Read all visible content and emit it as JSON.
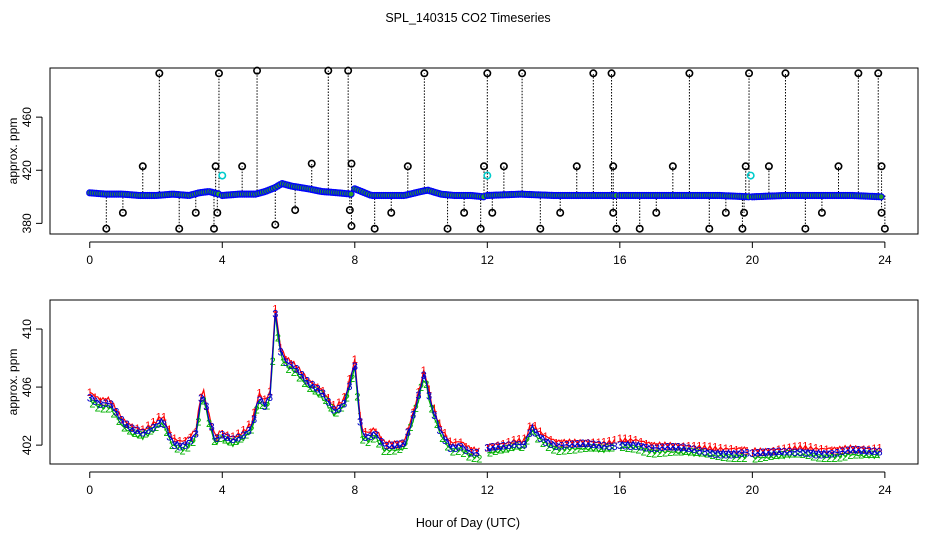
{
  "figure": {
    "title": "SPL_140315  CO2 Timeseries",
    "xlabel": "Hour of Day (UTC)"
  },
  "chart_data": [
    {
      "type": "scatter",
      "panel": "top",
      "title": "SPL_140315  CO2 Timeseries",
      "xlabel": "",
      "ylabel": "approx. ppm",
      "xlim": [
        -1.2,
        25
      ],
      "ylim": [
        372,
        497
      ],
      "xticks": [
        0,
        4,
        8,
        12,
        16,
        20,
        24
      ],
      "yticks": [
        380,
        420,
        460
      ],
      "colors": {
        "baseline": "#0000ff",
        "baseline_fill": "#2aa02a",
        "spike": "#000000",
        "flag": "#00cccc",
        "drop": "#000000"
      },
      "baseline_segments": [
        {
          "x": [
            0,
            0.5,
            1,
            1.5,
            2,
            2.5,
            3,
            3.3,
            3.6,
            3.9
          ],
          "y": [
            403,
            402,
            402,
            401,
            401,
            402,
            401,
            403,
            404,
            402
          ]
        },
        {
          "x": [
            4.0,
            4.5,
            5.0,
            5.3,
            5.6,
            5.8,
            6.1,
            6.6,
            7.0,
            7.5,
            7.9
          ],
          "y": [
            401,
            402,
            402,
            404,
            407,
            410,
            408,
            406,
            404,
            403,
            402
          ]
        },
        {
          "x": [
            8.0,
            8.2,
            8.5,
            9.0,
            9.5,
            10.0,
            10.2,
            10.6,
            11.0,
            11.5,
            11.9
          ],
          "y": [
            406,
            404,
            401,
            401,
            401,
            404,
            405,
            402,
            401,
            401,
            400
          ]
        },
        {
          "x": [
            12.0,
            13.0,
            14.0,
            15.0,
            15.9
          ],
          "y": [
            401,
            402,
            401,
            401,
            401
          ]
        },
        {
          "x": [
            16.0,
            17.0,
            18.0,
            19.0,
            19.9
          ],
          "y": [
            401,
            401,
            401,
            401,
            400
          ]
        },
        {
          "x": [
            20.0,
            21.0,
            22.0,
            23.0,
            23.9
          ],
          "y": [
            400,
            401,
            401,
            401,
            400
          ]
        }
      ],
      "spikes": [
        {
          "x": 2.1,
          "y": 493
        },
        {
          "x": 3.9,
          "y": 493
        },
        {
          "x": 5.05,
          "y": 495
        },
        {
          "x": 7.2,
          "y": 495
        },
        {
          "x": 7.8,
          "y": 495
        },
        {
          "x": 10.1,
          "y": 493
        },
        {
          "x": 12.0,
          "y": 493
        },
        {
          "x": 13.05,
          "y": 493
        },
        {
          "x": 15.2,
          "y": 493
        },
        {
          "x": 15.75,
          "y": 493
        },
        {
          "x": 18.1,
          "y": 493
        },
        {
          "x": 19.9,
          "y": 493
        },
        {
          "x": 21.0,
          "y": 493
        },
        {
          "x": 23.2,
          "y": 493
        },
        {
          "x": 23.8,
          "y": 493
        },
        {
          "x": 1.6,
          "y": 423
        },
        {
          "x": 3.8,
          "y": 423
        },
        {
          "x": 4.6,
          "y": 423
        },
        {
          "x": 6.7,
          "y": 425
        },
        {
          "x": 7.9,
          "y": 425
        },
        {
          "x": 9.6,
          "y": 423
        },
        {
          "x": 11.9,
          "y": 423
        },
        {
          "x": 12.5,
          "y": 423
        },
        {
          "x": 14.7,
          "y": 423
        },
        {
          "x": 15.8,
          "y": 423
        },
        {
          "x": 17.6,
          "y": 423
        },
        {
          "x": 19.8,
          "y": 423
        },
        {
          "x": 20.5,
          "y": 423
        },
        {
          "x": 22.6,
          "y": 423
        },
        {
          "x": 23.9,
          "y": 423
        }
      ],
      "drops": [
        {
          "x": 0.5,
          "y": 376
        },
        {
          "x": 1.0,
          "y": 388
        },
        {
          "x": 2.7,
          "y": 376
        },
        {
          "x": 3.2,
          "y": 388
        },
        {
          "x": 3.75,
          "y": 376
        },
        {
          "x": 3.85,
          "y": 388
        },
        {
          "x": 5.6,
          "y": 379
        },
        {
          "x": 6.2,
          "y": 390
        },
        {
          "x": 7.85,
          "y": 390
        },
        {
          "x": 7.9,
          "y": 378
        },
        {
          "x": 8.6,
          "y": 376
        },
        {
          "x": 9.1,
          "y": 388
        },
        {
          "x": 10.8,
          "y": 376
        },
        {
          "x": 11.3,
          "y": 388
        },
        {
          "x": 11.8,
          "y": 376
        },
        {
          "x": 12.15,
          "y": 388
        },
        {
          "x": 13.6,
          "y": 376
        },
        {
          "x": 14.2,
          "y": 388
        },
        {
          "x": 15.8,
          "y": 388
        },
        {
          "x": 15.9,
          "y": 376
        },
        {
          "x": 16.6,
          "y": 376
        },
        {
          "x": 17.1,
          "y": 388
        },
        {
          "x": 18.7,
          "y": 376
        },
        {
          "x": 19.2,
          "y": 388
        },
        {
          "x": 19.7,
          "y": 376
        },
        {
          "x": 19.75,
          "y": 388
        },
        {
          "x": 21.6,
          "y": 376
        },
        {
          "x": 22.1,
          "y": 388
        },
        {
          "x": 23.9,
          "y": 388
        },
        {
          "x": 24.0,
          "y": 376
        }
      ],
      "flags": [
        {
          "x": 4.0,
          "y": 416
        },
        {
          "x": 12.0,
          "y": 416
        },
        {
          "x": 19.95,
          "y": 416
        }
      ]
    },
    {
      "type": "line",
      "panel": "bottom",
      "title": "",
      "xlabel": "Hour of Day (UTC)",
      "ylabel": "approx. ppm",
      "xlim": [
        -1.2,
        25
      ],
      "ylim": [
        400.7,
        412
      ],
      "xticks": [
        0,
        4,
        8,
        12,
        16,
        20,
        24
      ],
      "yticks": [
        402,
        406,
        410
      ],
      "series": [
        {
          "name": "1",
          "color": "#ff0000",
          "dy": 0.25
        },
        {
          "name": "2",
          "color": "#00b000",
          "dy": -0.25
        },
        {
          "name": "3",
          "color": "#0000cd",
          "dy": 0
        }
      ],
      "segments": [
        {
          "x": [
            0,
            0.3,
            0.6,
            1.0,
            1.3,
            1.6,
            1.9,
            2.2,
            2.5,
            2.8,
            3.0,
            3.2,
            3.4,
            3.6,
            3.8,
            3.95
          ],
          "y": [
            405.4,
            404.9,
            404.9,
            403.5,
            403.0,
            402.8,
            403.2,
            403.8,
            402.2,
            402.0,
            402.3,
            402.8,
            405.8,
            403.8,
            402.2,
            402.8
          ]
        },
        {
          "x": [
            4.0,
            4.3,
            4.6,
            4.9,
            5.1,
            5.3,
            5.45,
            5.6,
            5.75,
            5.9,
            6.2,
            6.6,
            7.0,
            7.4,
            7.7,
            8.0
          ],
          "y": [
            402.6,
            402.3,
            402.6,
            403.3,
            405.3,
            404.8,
            405.5,
            411.2,
            408.6,
            407.8,
            407.3,
            406.2,
            405.6,
            404.3,
            405.0,
            407.6
          ]
        },
        {
          "x": [
            8.0,
            8.2,
            8.4,
            8.6,
            8.9,
            9.2,
            9.5,
            9.8,
            10.1,
            10.3,
            10.6,
            10.9,
            11.2,
            11.5,
            11.8
          ],
          "y": [
            407.6,
            402.8,
            402.6,
            402.9,
            401.9,
            401.9,
            402.0,
            404.3,
            407.0,
            404.8,
            402.9,
            401.9,
            402.0,
            401.5,
            401.4
          ]
        },
        {
          "x": [
            12.0,
            12.3,
            12.6,
            12.9,
            13.1,
            13.35,
            13.5,
            13.8,
            14.1,
            14.5,
            15.0,
            15.5,
            15.85
          ],
          "y": [
            401.7,
            401.8,
            401.9,
            402.1,
            402.0,
            403.3,
            402.8,
            402.3,
            402.0,
            402.0,
            402.0,
            401.9,
            402.0
          ]
        },
        {
          "x": [
            16.0,
            16.5,
            17.0,
            17.5,
            18.0,
            18.5,
            19.0,
            19.5,
            19.85
          ],
          "y": [
            402.1,
            402.1,
            401.8,
            401.8,
            401.7,
            401.6,
            401.5,
            401.5,
            401.5
          ]
        },
        {
          "x": [
            20.0,
            20.5,
            21.0,
            21.5,
            22.0,
            22.5,
            23.0,
            23.5,
            23.85
          ],
          "y": [
            401.4,
            401.4,
            401.5,
            401.6,
            401.5,
            401.5,
            401.6,
            401.5,
            401.5
          ]
        }
      ]
    }
  ]
}
